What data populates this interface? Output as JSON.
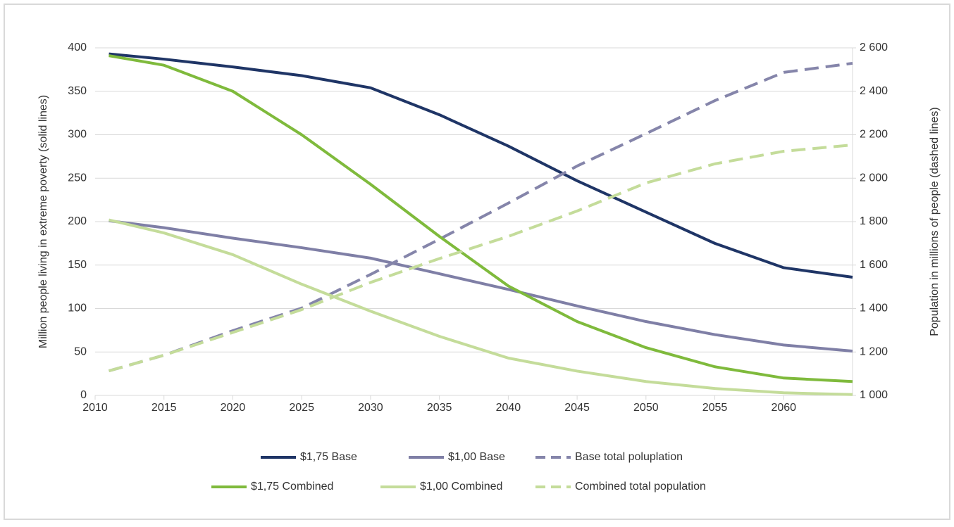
{
  "chart_data": {
    "type": "line",
    "y_label": "Million people  living in extreme poverty (solid lines)",
    "y2_label": "Population in millions of people (dashed lines)",
    "x": [
      2011,
      2015,
      2020,
      2025,
      2030,
      2035,
      2040,
      2045,
      2050,
      2055,
      2060,
      2065
    ],
    "xlim": [
      2010,
      2065
    ],
    "xticks": [
      2010,
      2015,
      2020,
      2025,
      2030,
      2035,
      2040,
      2045,
      2050,
      2055,
      2060
    ],
    "ylim": [
      0,
      400
    ],
    "yticks": [
      0,
      50,
      100,
      150,
      200,
      250,
      300,
      350,
      400
    ],
    "y2lim": [
      1000,
      2600
    ],
    "y2ticks": [
      {
        "value": 1000,
        "label": "1 000"
      },
      {
        "value": 1200,
        "label": "1 200"
      },
      {
        "value": 1400,
        "label": "1 400"
      },
      {
        "value": 1600,
        "label": "1 600"
      },
      {
        "value": 1800,
        "label": "1 800"
      },
      {
        "value": 2000,
        "label": "2 000"
      },
      {
        "value": 2200,
        "label": "2 200"
      },
      {
        "value": 2400,
        "label": "2 400"
      },
      {
        "value": 2600,
        "label": "2 600"
      }
    ],
    "grid": true,
    "legend_position": "bottom",
    "series": [
      {
        "name": "$1,75 Base",
        "color": "#1f3566",
        "dashed": false,
        "values": [
          393,
          387,
          378,
          368,
          354,
          323,
          287,
          247,
          211,
          175,
          147,
          136
        ]
      },
      {
        "name": "$1,00 Base",
        "color": "#7f7fa6",
        "dashed": false,
        "values": [
          201,
          193,
          181,
          170,
          158,
          140,
          122,
          103,
          85,
          70,
          58,
          51
        ]
      },
      {
        "name": "Base total poluplation",
        "color": "#8585aa",
        "dashed": true,
        "axis": "y2",
        "values": [
          1113,
          1185,
          1298,
          1402,
          1557,
          1719,
          1885,
          2056,
          2205,
          2357,
          2487,
          2529
        ]
      },
      {
        "name": "$1,75 Combined",
        "color": "#7fba3c",
        "dashed": false,
        "values": [
          391,
          380,
          350,
          300,
          243,
          183,
          126,
          85,
          55,
          33,
          20,
          16
        ]
      },
      {
        "name": "$1,00 Combined",
        "color": "#c4dc9a",
        "dashed": false,
        "values": [
          202,
          187,
          162,
          128,
          97,
          68,
          43,
          28,
          16,
          8,
          3,
          1
        ]
      },
      {
        "name": "Combined total population",
        "color": "#c4dc9a",
        "dashed": true,
        "axis": "y2",
        "values": [
          1113,
          1185,
          1290,
          1395,
          1520,
          1630,
          1732,
          1849,
          1978,
          2066,
          2124,
          2153
        ]
      }
    ]
  }
}
